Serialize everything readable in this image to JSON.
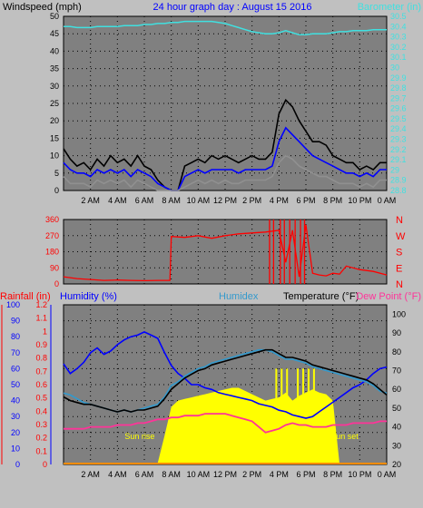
{
  "title": "24 hour graph day : August 15 2016",
  "colors": {
    "background": "#c0c0c0",
    "plot": "#808080",
    "grid": "#000000",
    "windspeed": "#000000",
    "windavg": "#0000ff",
    "windlow": "#909090",
    "barometer": "#40e0e0",
    "direction": "#ff0000",
    "rainfall": "#ff0000",
    "humidity": "#0000ff",
    "humidex": "#3399cc",
    "temperature": "#000000",
    "dewpoint": "#ff3399",
    "solar": "#ffff00"
  },
  "x_ticks": [
    "2 AM",
    "4 AM",
    "6 AM",
    "8 AM",
    "10 AM",
    "12 PM",
    "2 PM",
    "4 PM",
    "6 PM",
    "8 PM",
    "10 PM",
    "0 AM"
  ],
  "chart_data": [
    {
      "type": "line",
      "name": "wind-barometer",
      "xlabel": "",
      "ylabel_left": "Windspeed (mph)",
      "ylabel_right": "Barometer (in)",
      "y_left_ticks": [
        "0",
        "5",
        "10",
        "15",
        "20",
        "25",
        "30",
        "35",
        "40",
        "45",
        "50"
      ],
      "y_right_ticks": [
        "28.8",
        "28.9",
        "29",
        "29.1",
        "29.2",
        "29.3",
        "29.4",
        "29.5",
        "29.6",
        "29.7",
        "29.8",
        "29.9",
        "30",
        "30.1",
        "30.2",
        "30.3",
        "30.4",
        "30.5"
      ],
      "ylim_left": [
        0,
        50
      ],
      "ylim_right": [
        28.8,
        30.5
      ],
      "x_hours": [
        0,
        0.5,
        1,
        1.5,
        2,
        2.5,
        3,
        3.5,
        4,
        4.5,
        5,
        5.5,
        6,
        6.5,
        7,
        7.5,
        8,
        8.5,
        9,
        9.5,
        10,
        10.5,
        11,
        11.5,
        12,
        12.5,
        13,
        13.5,
        14,
        14.5,
        15,
        15.5,
        16,
        16.5,
        17,
        17.5,
        18,
        18.5,
        19,
        19.5,
        20,
        20.5,
        21,
        21.5,
        22,
        22.5,
        23,
        23.5,
        24
      ],
      "series": [
        {
          "key": "gust",
          "color": "#000000",
          "values": [
            12,
            9,
            7,
            8,
            6,
            9,
            7,
            10,
            8,
            9,
            7,
            10,
            7,
            6,
            3,
            1,
            0,
            0,
            7,
            8,
            9,
            8,
            10,
            9,
            10,
            9,
            8,
            9,
            10,
            9,
            9,
            11,
            22,
            26,
            24,
            20,
            17,
            14,
            14,
            13,
            10,
            9,
            8,
            8,
            6,
            7,
            6,
            8,
            8
          ]
        },
        {
          "key": "avg",
          "color": "#0000ff",
          "values": [
            8,
            6,
            5,
            5,
            4,
            6,
            5,
            6,
            5,
            6,
            4,
            6,
            5,
            4,
            2,
            1,
            0,
            0,
            4,
            5,
            6,
            5,
            6,
            6,
            6,
            6,
            5,
            6,
            6,
            6,
            6,
            7,
            14,
            18,
            16,
            14,
            12,
            10,
            9,
            8,
            7,
            6,
            5,
            5,
            4,
            5,
            4,
            6,
            6
          ]
        },
        {
          "key": "low",
          "color": "#909090",
          "values": [
            4,
            2,
            2,
            2,
            1,
            3,
            2,
            3,
            2,
            3,
            1,
            3,
            2,
            1,
            0,
            0,
            0,
            0,
            1,
            2,
            3,
            2,
            3,
            2,
            3,
            2,
            2,
            3,
            3,
            3,
            3,
            4,
            8,
            10,
            9,
            7,
            6,
            5,
            4,
            4,
            3,
            2,
            2,
            2,
            1,
            2,
            1,
            3,
            3
          ]
        },
        {
          "key": "barometer",
          "color": "#40e0e0",
          "values": [
            30.4,
            30.4,
            30.39,
            30.39,
            30.39,
            30.4,
            30.4,
            30.4,
            30.4,
            30.41,
            30.41,
            30.41,
            30.42,
            30.42,
            30.43,
            30.43,
            30.44,
            30.44,
            30.45,
            30.45,
            30.45,
            30.45,
            30.45,
            30.44,
            30.43,
            30.41,
            30.39,
            30.37,
            30.35,
            30.34,
            30.33,
            30.33,
            30.34,
            30.36,
            30.34,
            30.32,
            30.32,
            30.33,
            30.33,
            30.33,
            30.34,
            30.35,
            30.35,
            30.36,
            30.36,
            30.36,
            30.37,
            30.37,
            30.37
          ]
        }
      ]
    },
    {
      "type": "scatter",
      "name": "wind-direction",
      "xlabel": "",
      "ylabel": "",
      "y_ticks": [
        "0",
        "90",
        "180",
        "270",
        "360"
      ],
      "y_right_labels": [
        "N",
        "W",
        "S",
        "E",
        "N"
      ],
      "ylim": [
        0,
        360
      ],
      "x_hours": [
        0,
        1,
        2,
        3,
        4,
        5,
        6,
        7,
        7.9,
        8,
        9,
        10,
        11,
        12,
        13,
        14,
        15,
        16,
        16.5,
        17,
        17.5,
        18,
        18.5,
        19,
        19.5,
        20,
        20.5,
        21,
        22,
        23,
        24
      ],
      "values": [
        40,
        30,
        25,
        20,
        22,
        20,
        18,
        20,
        20,
        265,
        260,
        270,
        255,
        270,
        280,
        285,
        290,
        300,
        120,
        300,
        40,
        330,
        60,
        50,
        45,
        60,
        55,
        100,
        80,
        70,
        50
      ],
      "spikes_hours": [
        15.3,
        15.6,
        16.1,
        16.4,
        16.8,
        17.2,
        17.6,
        17.9
      ],
      "spike_values": [
        360,
        360,
        360,
        360,
        360,
        360,
        360,
        360
      ]
    },
    {
      "type": "line",
      "name": "temp-humidity",
      "xlabel": "",
      "ylabel_rain": "Rainfall (in)",
      "ylabel_humidity": "Humidity (%)",
      "ylabel_humidex": "Humidex",
      "ylabel_temp": "Temperature (°F)",
      "ylabel_dew": "Dew Point (°F)",
      "rain_ticks": [
        "0",
        "0.1",
        "0.2",
        "0.3",
        "0.4",
        "0.5",
        "0.6",
        "0.7",
        "0.8",
        "0.9",
        "1",
        "1.1",
        "1.2"
      ],
      "humidity_ticks": [
        "0",
        "10",
        "20",
        "30",
        "40",
        "50",
        "60",
        "70",
        "80",
        "90",
        "100"
      ],
      "temp_ticks": [
        "20",
        "30",
        "40",
        "50",
        "60",
        "70",
        "80",
        "90",
        "100"
      ],
      "ylim_humidity": [
        0,
        100
      ],
      "ylim_temp": [
        20,
        105
      ],
      "sunrise_label": "Sun rise",
      "sunset_label": "Sun set",
      "sunrise_hour": 6.9,
      "sunset_hour": 19.7,
      "x_hours": [
        0,
        0.5,
        1,
        1.5,
        2,
        2.5,
        3,
        3.5,
        4,
        4.5,
        5,
        5.5,
        6,
        6.5,
        7,
        7.5,
        8,
        8.5,
        9,
        9.5,
        10,
        10.5,
        11,
        11.5,
        12,
        12.5,
        13,
        13.5,
        14,
        14.5,
        15,
        15.5,
        16,
        16.5,
        17,
        17.5,
        18,
        18.5,
        19,
        19.5,
        20,
        20.5,
        21,
        21.5,
        22,
        22.5,
        23,
        23.5,
        24
      ],
      "series": [
        {
          "key": "humidity",
          "axis": "humidity",
          "color": "#0000ff",
          "values": [
            63,
            57,
            60,
            64,
            70,
            73,
            69,
            71,
            75,
            78,
            80,
            81,
            83,
            81,
            79,
            70,
            62,
            57,
            54,
            50,
            50,
            48,
            47,
            45,
            44,
            43,
            42,
            41,
            40,
            38,
            37,
            36,
            34,
            33,
            31,
            30,
            29,
            30,
            33,
            36,
            39,
            42,
            45,
            48,
            50,
            53,
            57,
            60,
            61
          ]
        },
        {
          "key": "humidex",
          "axis": "temp",
          "color": "#3399cc",
          "values": [
            58,
            57,
            55,
            53,
            52,
            51,
            50,
            49,
            48,
            49,
            48,
            49,
            50,
            51,
            52,
            56,
            62,
            64,
            67,
            69,
            71,
            72,
            74,
            75,
            76,
            77,
            78,
            79,
            80,
            81,
            81,
            80,
            78,
            76,
            76,
            75,
            74,
            72,
            71,
            70,
            69,
            68,
            67,
            66,
            65,
            64,
            62,
            59,
            58
          ]
        },
        {
          "key": "temperature",
          "axis": "temp",
          "color": "#000000",
          "values": [
            56,
            54,
            53,
            52,
            52,
            51,
            50,
            49,
            48,
            49,
            48,
            49,
            49,
            50,
            51,
            55,
            60,
            63,
            66,
            68,
            70,
            71,
            73,
            74,
            75,
            76,
            77,
            78,
            79,
            80,
            81,
            81,
            79,
            77,
            77,
            76,
            75,
            73,
            72,
            71,
            70,
            69,
            68,
            67,
            66,
            65,
            63,
            60,
            57
          ]
        },
        {
          "key": "dewpoint",
          "axis": "temp",
          "color": "#ff3399",
          "values": [
            39,
            39,
            39,
            39,
            40,
            40,
            40,
            40,
            41,
            41,
            41,
            42,
            42,
            43,
            44,
            44,
            45,
            45,
            46,
            46,
            46,
            47,
            47,
            47,
            47,
            46,
            45,
            44,
            43,
            40,
            37,
            38,
            39,
            41,
            42,
            41,
            41,
            40,
            40,
            40,
            41,
            41,
            41,
            42,
            42,
            42,
            42,
            43,
            43
          ]
        },
        {
          "key": "solar",
          "axis": "humidity",
          "color": "#ffff00",
          "values": [
            0,
            0,
            0,
            0,
            0,
            0,
            0,
            0,
            0,
            0,
            0,
            0,
            0,
            0,
            1,
            18,
            36,
            40,
            41,
            42,
            43,
            44,
            45,
            46,
            47,
            48,
            48,
            46,
            44,
            42,
            40,
            41,
            42,
            45,
            40,
            43,
            45,
            47,
            45,
            44,
            40,
            0,
            0,
            0,
            0,
            0,
            0,
            0,
            0
          ]
        }
      ]
    }
  ]
}
